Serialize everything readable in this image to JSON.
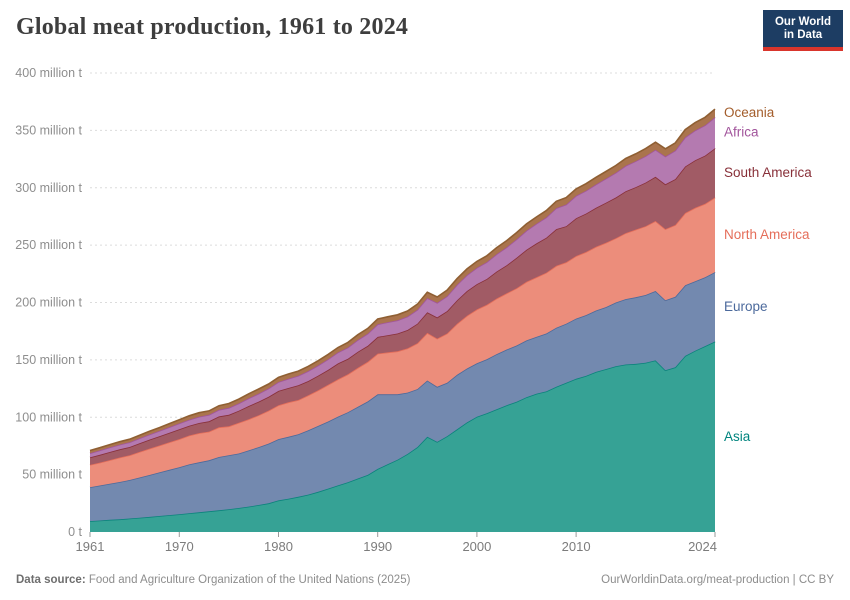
{
  "header": {
    "title": "Global meat production, 1961 to 2024"
  },
  "logo": {
    "line1": "Our World",
    "line2": "in Data",
    "bg_color": "#1d3d63",
    "bar_color": "#d9352c"
  },
  "footer": {
    "source_label": "Data source:",
    "source_text": " Food and Agriculture Organization of the United Nations (2025)",
    "right_text": "OurWorldinData.org/meat-production | CC BY"
  },
  "chart_data": {
    "type": "area",
    "stacked": true,
    "title": "Global meat production, 1961 to 2024",
    "unit": "million t",
    "xlabel": "",
    "ylabel": "",
    "xlim": [
      1961,
      2024
    ],
    "ylim": [
      0,
      400
    ],
    "grid": "dashed-horizontal",
    "legend_position": "right-of-plot",
    "xticks": [
      1961,
      1970,
      1980,
      1990,
      2000,
      2010,
      2024
    ],
    "yticks": [
      {
        "value": 0,
        "label": "0 t"
      },
      {
        "value": 50,
        "label": "50 million t"
      },
      {
        "value": 100,
        "label": "100 million t"
      },
      {
        "value": 150,
        "label": "150 million t"
      },
      {
        "value": 200,
        "label": "200 million t"
      },
      {
        "value": 250,
        "label": "250 million t"
      },
      {
        "value": 300,
        "label": "300 million t"
      },
      {
        "value": 350,
        "label": "350 million t"
      },
      {
        "value": 400,
        "label": "400 million t"
      }
    ],
    "years": [
      1961,
      1962,
      1963,
      1964,
      1965,
      1966,
      1967,
      1968,
      1969,
      1970,
      1971,
      1972,
      1973,
      1974,
      1975,
      1976,
      1977,
      1978,
      1979,
      1980,
      1981,
      1982,
      1983,
      1984,
      1985,
      1986,
      1987,
      1988,
      1989,
      1990,
      1991,
      1992,
      1993,
      1994,
      1995,
      1996,
      1997,
      1998,
      1999,
      2000,
      2001,
      2002,
      2003,
      2004,
      2005,
      2006,
      2007,
      2008,
      2009,
      2010,
      2011,
      2012,
      2013,
      2014,
      2015,
      2016,
      2017,
      2018,
      2019,
      2020,
      2021,
      2022,
      2023,
      2024
    ],
    "series": [
      {
        "name": "Asia",
        "fill": "#36a295",
        "stroke": "#0b837c",
        "label_color": "#00847E",
        "values": [
          9.5,
          10.0,
          10.6,
          11.1,
          11.8,
          12.5,
          13.2,
          13.9,
          14.7,
          15.5,
          16.4,
          17.2,
          18.0,
          18.9,
          19.9,
          20.9,
          22.1,
          23.5,
          25.0,
          27.5,
          29.0,
          30.7,
          32.6,
          35.0,
          37.8,
          40.6,
          43.4,
          46.6,
          49.8,
          55.0,
          59.0,
          63.0,
          68.0,
          74.0,
          83.0,
          78.5,
          83.5,
          89.5,
          95.5,
          100.5,
          103.5,
          107.0,
          110.5,
          113.5,
          117.5,
          120.5,
          122.5,
          126.5,
          130.0,
          133.5,
          136.0,
          139.5,
          142.0,
          144.5,
          146.0,
          146.5,
          147.5,
          149.5,
          141.0,
          143.5,
          153.5,
          158.0,
          162.0,
          166.0
        ]
      },
      {
        "name": "Europe",
        "fill": "#7389af",
        "stroke": "#4C6A9C",
        "label_color": "#4C6A9C",
        "values": [
          29.5,
          30.5,
          31.5,
          32.5,
          33.5,
          35.0,
          36.5,
          38.0,
          39.5,
          41.0,
          42.5,
          43.5,
          44.5,
          46.5,
          47.0,
          47.5,
          49.0,
          50.5,
          52.0,
          53.5,
          54.0,
          54.5,
          56.0,
          57.5,
          58.5,
          60.0,
          61.0,
          62.5,
          64.0,
          65.0,
          61.0,
          57.0,
          53.5,
          50.5,
          49.0,
          48.0,
          46.5,
          47.5,
          47.0,
          46.5,
          47.0,
          48.0,
          48.5,
          49.0,
          49.5,
          49.5,
          50.5,
          51.5,
          51.5,
          52.5,
          53.0,
          53.5,
          54.0,
          55.5,
          57.0,
          58.0,
          59.0,
          60.5,
          61.0,
          61.5,
          61.5,
          60.5,
          60.0,
          60.5
        ]
      },
      {
        "name": "North America",
        "fill": "#ec8d7b",
        "stroke": "#E56E5A",
        "label_color": "#E56E5A",
        "values": [
          19.5,
          20.0,
          20.6,
          21.3,
          21.6,
          22.3,
          23.0,
          23.5,
          24.0,
          24.5,
          25.2,
          25.5,
          25.0,
          25.8,
          25.2,
          26.8,
          27.2,
          27.8,
          28.8,
          29.5,
          30.0,
          29.8,
          30.5,
          31.0,
          32.0,
          32.5,
          33.0,
          34.0,
          34.5,
          35.5,
          36.5,
          37.5,
          38.5,
          40.0,
          41.5,
          42.0,
          43.0,
          44.5,
          46.0,
          47.0,
          47.5,
          48.5,
          49.0,
          50.0,
          51.0,
          52.0,
          53.0,
          54.0,
          53.5,
          54.5,
          55.0,
          55.5,
          56.0,
          56.0,
          57.5,
          59.0,
          60.0,
          61.0,
          62.0,
          62.5,
          63.0,
          64.0,
          64.0,
          65.0
        ]
      },
      {
        "name": "South America",
        "fill": "#a15b65",
        "stroke": "#883039",
        "label_color": "#883039",
        "values": [
          6.5,
          6.8,
          7.0,
          7.2,
          7.2,
          7.5,
          7.8,
          8.0,
          8.3,
          8.5,
          8.5,
          8.8,
          9.0,
          9.5,
          10.0,
          10.5,
          11.5,
          11.8,
          12.0,
          12.5,
          12.5,
          12.8,
          12.5,
          12.8,
          13.0,
          13.8,
          13.5,
          14.0,
          14.0,
          14.5,
          15.0,
          15.5,
          16.0,
          17.0,
          18.0,
          18.5,
          19.5,
          20.5,
          21.5,
          22.0,
          22.5,
          23.5,
          24.5,
          26.5,
          28.0,
          29.5,
          30.5,
          32.0,
          31.5,
          33.0,
          33.5,
          34.0,
          35.0,
          35.5,
          36.5,
          37.0,
          38.0,
          38.5,
          39.0,
          40.0,
          40.5,
          41.5,
          42.0,
          43.0
        ]
      },
      {
        "name": "Africa",
        "fill": "#b47ab0",
        "stroke": "#A2559C",
        "label_color": "#A2559C",
        "values": [
          3.7,
          3.8,
          4.0,
          4.1,
          4.2,
          4.4,
          4.5,
          4.7,
          4.9,
          5.1,
          5.3,
          5.5,
          5.6,
          5.8,
          6.1,
          6.4,
          6.7,
          7.0,
          7.3,
          7.7,
          8.1,
          8.4,
          8.7,
          8.9,
          9.3,
          9.6,
          9.9,
          10.3,
          10.6,
          11.0,
          11.3,
          11.5,
          11.8,
          12.1,
          12.4,
          12.7,
          13.0,
          13.5,
          13.9,
          14.3,
          14.7,
          15.2,
          15.7,
          16.2,
          16.7,
          17.2,
          17.7,
          18.3,
          18.9,
          19.5,
          19.9,
          20.4,
          21.0,
          21.6,
          22.1,
          22.6,
          23.1,
          23.7,
          24.3,
          25.0,
          25.5,
          26.0,
          26.5,
          27.0
        ]
      },
      {
        "name": "Oceania",
        "fill": "#aa744d",
        "stroke": "#8f5f33",
        "label_color": "#a35d2b",
        "values": [
          2.3,
          2.4,
          2.5,
          2.5,
          2.6,
          2.7,
          2.8,
          2.9,
          3.1,
          3.3,
          3.4,
          3.5,
          3.4,
          3.6,
          3.8,
          3.7,
          3.9,
          4.0,
          3.9,
          4.0,
          4.1,
          4.0,
          4.1,
          4.1,
          4.2,
          4.3,
          4.4,
          4.5,
          4.5,
          4.6,
          4.7,
          4.8,
          4.8,
          4.9,
          5.0,
          5.1,
          5.2,
          5.3,
          5.4,
          5.5,
          5.5,
          5.6,
          5.7,
          5.7,
          5.8,
          5.8,
          5.9,
          5.9,
          6.0,
          6.0,
          6.1,
          6.2,
          6.2,
          6.3,
          6.4,
          6.4,
          6.5,
          6.5,
          6.6,
          6.6,
          6.7,
          6.8,
          6.9,
          7.0
        ]
      }
    ]
  }
}
